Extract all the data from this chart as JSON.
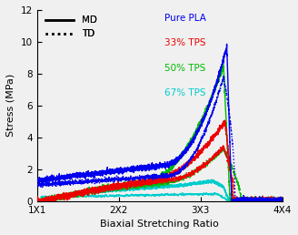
{
  "xlabel": "Biaxial Stretching Ratio",
  "ylabel": "Stress (MPa)",
  "xlim": [
    1.0,
    4.0
  ],
  "ylim": [
    0,
    12
  ],
  "yticks": [
    0,
    2,
    4,
    6,
    8,
    10,
    12
  ],
  "xtick_labels": [
    "1X1",
    "2X2",
    "3X3",
    "4X4"
  ],
  "xtick_positions": [
    1.0,
    2.0,
    3.0,
    4.0
  ],
  "colors": {
    "Pure PLA": "#0000EE",
    "33% TPS": "#EE0000",
    "50% TPS": "#00BB00",
    "67% TPS": "#00CCCC"
  },
  "background_color": "#f0f0f0"
}
